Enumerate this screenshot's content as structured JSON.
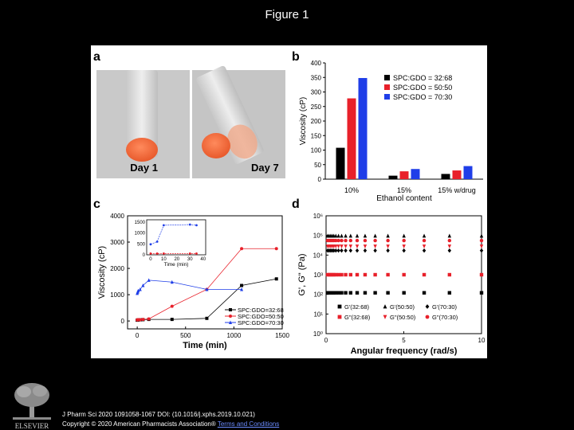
{
  "page": {
    "title": "Figure 1",
    "citation_line1": "J Pharm Sci 2020 1091058-1067 DOI: (10.1016/j.xphs.2019.10.021)",
    "citation_prefix": "Copyright © 2020 American Pharmacists Association® ",
    "citation_link": "Terms and Conditions",
    "publisher": "ELSEVIER"
  },
  "panels": {
    "a": {
      "letter": "a",
      "photo_labels": [
        "Day 1",
        "Day 7"
      ]
    },
    "b": {
      "letter": "b"
    },
    "c": {
      "letter": "c",
      "inset_xlabel": "Time (min)"
    },
    "d": {
      "letter": "d",
      "legend": [
        "G'(32:68)",
        "G'(50:50)",
        "G'(70:30)",
        "G\"(32:68)",
        "G\"(50:50)",
        "G\"(70:30)"
      ]
    }
  },
  "chart_data": [
    {
      "panel": "b",
      "type": "bar",
      "categories": [
        "10%",
        "15%",
        "15% w/drug"
      ],
      "xlabel": "Ethanol content",
      "ylabel": "Viscosity (cP)",
      "ylim": [
        0,
        400
      ],
      "yticks": [
        0,
        50,
        100,
        150,
        200,
        250,
        300,
        350,
        400
      ],
      "legend_position": "top-right",
      "series": [
        {
          "name": "SPC:GDO = 32:68",
          "color": "#000000",
          "values": [
            108,
            12,
            18
          ]
        },
        {
          "name": "SPC:GDO = 50:50",
          "color": "#e8202a",
          "values": [
            278,
            27,
            30
          ]
        },
        {
          "name": "SPC:GDO = 70:30",
          "color": "#1f3ee8",
          "values": [
            348,
            35,
            45
          ]
        }
      ]
    },
    {
      "panel": "c",
      "type": "line",
      "xlabel": "Time (min)",
      "ylabel": "Viscosity (cP)",
      "xlim": [
        -100,
        1500
      ],
      "ylim": [
        -300,
        4000
      ],
      "xticks": [
        0,
        500,
        1000,
        1500
      ],
      "yticks": [
        0,
        1000,
        2000,
        3000,
        4000
      ],
      "legend_position": "bottom-right",
      "series": [
        {
          "name": "SPC:GDO=32:68",
          "color": "#000000",
          "marker": "square",
          "x": [
            0,
            5,
            10,
            30,
            60,
            120,
            360,
            720,
            1080,
            1440
          ],
          "y": [
            30,
            35,
            40,
            45,
            50,
            60,
            60,
            100,
            1350,
            1600
          ]
        },
        {
          "name": "SPC:GDO=50:50",
          "color": "#e8202a",
          "marker": "circle",
          "x": [
            0,
            5,
            10,
            30,
            60,
            120,
            360,
            720,
            1080,
            1440
          ],
          "y": [
            40,
            45,
            50,
            50,
            60,
            80,
            560,
            1200,
            2750,
            2750
          ]
        },
        {
          "name": "SPC:GDO=70:30",
          "color": "#1f3ee8",
          "marker": "triangle",
          "x": [
            0,
            5,
            10,
            30,
            60,
            120,
            360,
            720,
            1080
          ],
          "y": [
            1050,
            1100,
            1150,
            1200,
            1350,
            1550,
            1480,
            1200,
            1200
          ]
        }
      ],
      "inset": {
        "xlabel": "Time (min)",
        "xlim": [
          -3,
          42
        ],
        "ylim": [
          0,
          1600
        ],
        "xticks": [
          0,
          10,
          20,
          30,
          40
        ],
        "yticks": [
          0,
          500,
          1000,
          1500
        ],
        "series": [
          {
            "name": "SPC:GDO=50:50",
            "color": "#e8202a",
            "x": [
              0,
              5,
              10,
              30,
              35
            ],
            "y": [
              60,
              60,
              60,
              60,
              60
            ]
          },
          {
            "name": "SPC:GDO=70:30",
            "color": "#1f3ee8",
            "x": [
              0,
              5,
              10,
              30,
              35
            ],
            "y": [
              480,
              600,
              1350,
              1380,
              1350
            ]
          }
        ]
      }
    },
    {
      "panel": "d",
      "type": "scatter",
      "xlabel": "Angular frequency (rad/s)",
      "ylabel": "G', G\" (Pa)",
      "xlim": [
        0,
        10
      ],
      "ylim": [
        1,
        1000000
      ],
      "y_scale": "log",
      "xticks": [
        0,
        5,
        10
      ],
      "ytick_labels": [
        "10⁰",
        "10¹",
        "10²",
        "10³",
        "10⁴",
        "10⁵",
        "10⁶"
      ],
      "legend_position": "bottom",
      "x": [
        0.1,
        0.2,
        0.3,
        0.4,
        0.5,
        0.63,
        0.8,
        1.0,
        1.26,
        1.58,
        2.0,
        2.51,
        3.16,
        3.98,
        5.01,
        6.31,
        7.94,
        10.0
      ],
      "series": [
        {
          "name": "G'(32:68)",
          "color": "#000000",
          "marker": "square",
          "y": 120
        },
        {
          "name": "G'(50:50)",
          "color": "#000000",
          "marker": "triangle",
          "y": 95000
        },
        {
          "name": "G'(70:30)",
          "color": "#000000",
          "marker": "diamond",
          "y": 17000
        },
        {
          "name": "G\"(32:68)",
          "color": "#e8202a",
          "marker": "square",
          "y": 1000
        },
        {
          "name": "G\"(50:50)",
          "color": "#e8202a",
          "marker": "triangle-down",
          "y": 28000
        },
        {
          "name": "G\"(70:30)",
          "color": "#e8202a",
          "marker": "circle",
          "y": 55000
        }
      ]
    }
  ]
}
